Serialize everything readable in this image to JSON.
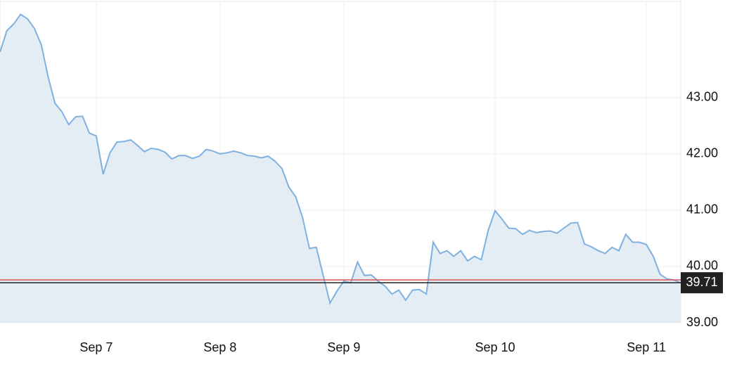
{
  "chart_data": {
    "type": "area",
    "values": [
      43.81,
      44.19,
      44.31,
      44.48,
      44.4,
      44.23,
      43.94,
      43.37,
      42.9,
      42.75,
      42.52,
      42.66,
      42.67,
      42.37,
      42.32,
      41.64,
      42.02,
      42.21,
      42.22,
      42.25,
      42.15,
      42.04,
      42.1,
      42.08,
      42.03,
      41.91,
      41.97,
      41.97,
      41.92,
      41.96,
      42.08,
      42.05,
      42.0,
      42.02,
      42.05,
      42.02,
      41.97,
      41.96,
      41.93,
      41.96,
      41.87,
      41.74,
      41.41,
      41.24,
      40.87,
      40.32,
      40.34,
      39.84,
      39.35,
      39.56,
      39.74,
      39.71,
      40.08,
      39.84,
      39.85,
      39.74,
      39.65,
      39.51,
      39.58,
      39.4,
      39.58,
      39.59,
      39.51,
      40.43,
      40.23,
      40.28,
      40.18,
      40.28,
      40.1,
      40.18,
      40.12,
      40.64,
      40.99,
      40.84,
      40.68,
      40.67,
      40.57,
      40.64,
      40.6,
      40.62,
      40.63,
      40.59,
      40.68,
      40.77,
      40.78,
      40.4,
      40.35,
      40.28,
      40.23,
      40.34,
      40.28,
      40.57,
      40.43,
      40.43,
      40.39,
      40.18,
      39.86,
      39.78,
      39.76,
      39.71
    ],
    "color": "#7fb1e0",
    "fill": "#e4edf4",
    "xlim": [
      0,
      99
    ],
    "xticks": [
      {
        "value": 14,
        "label": "Sep 7"
      },
      {
        "value": 32,
        "label": "Sep 8"
      },
      {
        "value": 50,
        "label": "Sep 9"
      },
      {
        "value": 72,
        "label": "Sep 10"
      },
      {
        "value": 94,
        "label": "Sep 11"
      }
    ],
    "ylim": [
      39,
      44.71
    ],
    "yticks": [
      {
        "value": 39,
        "label": "39.00"
      },
      {
        "value": 40,
        "label": "40.00"
      },
      {
        "value": 41,
        "label": "41.00"
      },
      {
        "value": 42,
        "label": "42.00"
      },
      {
        "value": 43,
        "label": "43.00"
      }
    ],
    "grid": true,
    "reference_lines": [
      {
        "value": 39.76,
        "color": "#d9534f"
      },
      {
        "value": 39.71,
        "color": "#222222",
        "label": "39.71"
      }
    ]
  }
}
